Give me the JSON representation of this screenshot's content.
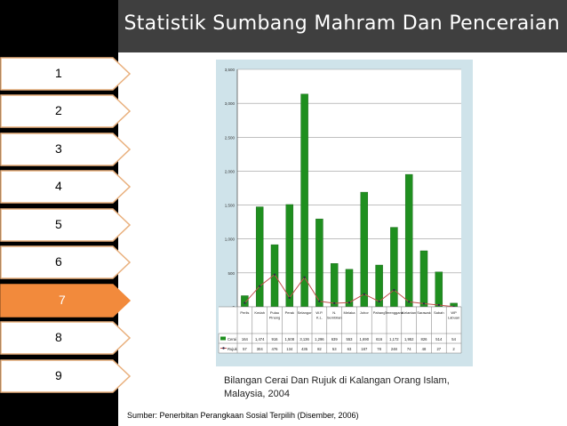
{
  "title": "Statistik Sumbang Mahram Dan Penceraian",
  "nav": [
    {
      "label": "1",
      "active": false
    },
    {
      "label": "2",
      "active": false
    },
    {
      "label": "3",
      "active": false
    },
    {
      "label": "4",
      "active": false
    },
    {
      "label": "5",
      "active": false
    },
    {
      "label": "6",
      "active": false
    },
    {
      "label": "7",
      "active": true
    },
    {
      "label": "8",
      "active": false
    },
    {
      "label": "9",
      "active": false
    }
  ],
  "caption": "Bilangan Cerai Dan Rujuk di Kalangan Orang Islam, Malaysia, 2004",
  "source": "Sumber: Penerbitan Perangkaan Sosial Terpilih (Disember, 2006)",
  "colors": {
    "accent": "#f28a3c",
    "bar": "#1f8f1f",
    "line": "#c0504d"
  },
  "chart_data": {
    "type": "bar",
    "categories": [
      "Perlis",
      "Kedah",
      "Pulau Pinang",
      "Perak",
      "Selangor",
      "W.P. K.L.",
      "N. Sembilan",
      "Melaka",
      "Johor",
      "Pahang",
      "Terengganu",
      "Kelantan",
      "Sarawak",
      "Sabah",
      "WP Labuan"
    ],
    "series": [
      {
        "name": "Cerai",
        "chart": "bar",
        "values": [
          164,
          1474,
          916,
          1508,
          3136,
          1296,
          639,
          553,
          1690,
          616,
          1172,
          1952,
          826,
          514,
          54
        ]
      },
      {
        "name": "Rujuk",
        "chart": "line",
        "values": [
          57,
          304,
          476,
          134,
          435,
          82,
          53,
          63,
          187,
          78,
          248,
          74,
          48,
          27,
          2
        ]
      }
    ],
    "yticks": [
      "0",
      "500",
      "1,000",
      "1,500",
      "2,000",
      "2,500",
      "3,000",
      "3,500"
    ],
    "ylim": [
      0,
      3500
    ],
    "table_rows": [
      {
        "name": "Cerai",
        "values": [
          "164",
          "1,474",
          "916",
          "1,508",
          "3,136",
          "1,296",
          "639",
          "553",
          "1,690",
          "616",
          "1,172",
          "1,952",
          "826",
          "514",
          "54"
        ]
      },
      {
        "name": "Rujuk",
        "values": [
          "57",
          "304",
          "476",
          "134",
          "435",
          "82",
          "53",
          "63",
          "187",
          "78",
          "248",
          "74",
          "48",
          "27",
          "2"
        ]
      }
    ],
    "grid": true,
    "legend": "table-bottom"
  }
}
